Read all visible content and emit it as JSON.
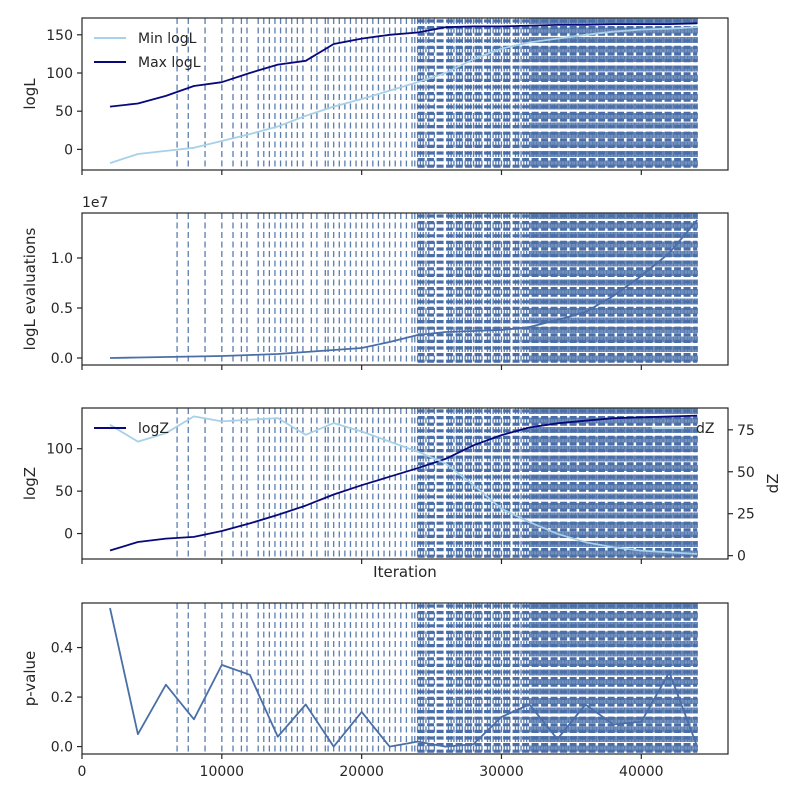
{
  "chart_data": [
    {
      "type": "line",
      "ylabel": "logL",
      "yticks": [
        0,
        50,
        100,
        150
      ],
      "ylim": [
        -27,
        172
      ],
      "xlim": [
        0,
        46200
      ],
      "x_tick_labels_visible": false,
      "legend_placement": "top-left",
      "series": [
        {
          "name": "Min logL",
          "color": "#a6d1e8",
          "x": [
            2000,
            4000,
            6000,
            8000,
            10000,
            12000,
            14000,
            16000,
            18000,
            20000,
            22000,
            24000,
            26000,
            28000,
            30000,
            32000,
            34000,
            36000,
            38000,
            40000,
            42000,
            44000
          ],
          "y": [
            -18,
            -6,
            -2,
            2,
            11,
            20,
            30,
            44,
            56,
            66,
            77,
            88,
            100,
            118,
            132,
            140,
            145,
            150,
            154,
            157,
            158,
            160
          ]
        },
        {
          "name": "Max logL",
          "color": "#08087a",
          "x": [
            2000,
            4000,
            6000,
            8000,
            10000,
            12000,
            14000,
            16000,
            18000,
            20000,
            22000,
            24000,
            26000,
            28000,
            30000,
            32000,
            34000,
            36000,
            38000,
            40000,
            42000,
            44000
          ],
          "y": [
            56,
            60,
            70,
            83,
            88,
            100,
            111,
            116,
            138,
            145,
            150,
            153,
            160,
            161,
            161,
            162,
            163,
            163,
            164,
            164,
            164,
            165
          ]
        }
      ]
    },
    {
      "type": "line",
      "ylabel": "logL evaluations",
      "offset_text": "1e7",
      "yticks": [
        0.0,
        0.5,
        1.0
      ],
      "ylim": [
        -0.07,
        1.45
      ],
      "xlim": [
        0,
        46200
      ],
      "x_tick_labels_visible": false,
      "series": [
        {
          "color": "#4a6fa8",
          "x": [
            2000,
            4000,
            6000,
            8000,
            10000,
            12000,
            14000,
            16000,
            18000,
            20000,
            22000,
            24000,
            26000,
            28000,
            30000,
            32000,
            34000,
            36000,
            38000,
            40000,
            42000,
            44000
          ],
          "y": [
            0.0,
            0.005,
            0.01,
            0.015,
            0.02,
            0.03,
            0.04,
            0.06,
            0.08,
            0.1,
            0.16,
            0.23,
            0.26,
            0.27,
            0.28,
            0.31,
            0.38,
            0.46,
            0.62,
            0.82,
            1.05,
            1.38
          ]
        }
      ]
    },
    {
      "type": "line",
      "ylabel": "logZ",
      "y2label": "dZ",
      "xlabel": "Iteration",
      "yticks": [
        0,
        50,
        100
      ],
      "ylim": [
        -30,
        148
      ],
      "y2ticks": [
        0,
        25,
        50,
        75
      ],
      "y2lim": [
        -2,
        88
      ],
      "xlim": [
        0,
        46200
      ],
      "x_tick_labels_visible": false,
      "series": [
        {
          "name": "logZ",
          "color": "#08087a",
          "axis": "left",
          "x": [
            2000,
            4000,
            6000,
            8000,
            10000,
            12000,
            14000,
            16000,
            18000,
            20000,
            22000,
            24000,
            26000,
            28000,
            30000,
            32000,
            34000,
            36000,
            38000,
            40000,
            42000,
            44000
          ],
          "y": [
            -20,
            -10,
            -6,
            -4,
            3,
            12,
            22,
            33,
            46,
            57,
            67,
            77,
            88,
            104,
            116,
            125,
            130,
            133,
            136,
            137,
            138,
            139
          ]
        },
        {
          "name": "dZ",
          "color": "#a6d1e8",
          "axis": "right",
          "x": [
            2000,
            4000,
            6000,
            8000,
            10000,
            12000,
            14000,
            16000,
            18000,
            20000,
            22000,
            24000,
            26000,
            28000,
            30000,
            32000,
            34000,
            36000,
            38000,
            40000,
            42000,
            44000
          ],
          "y": [
            78,
            68,
            73,
            83,
            80,
            81,
            82,
            72,
            79,
            74,
            68,
            62,
            55,
            42,
            28,
            20,
            13,
            8,
            5,
            3,
            2,
            1
          ]
        }
      ]
    },
    {
      "type": "line",
      "ylabel": "p-value",
      "yticks": [
        0.0,
        0.2,
        0.4
      ],
      "ylim": [
        -0.03,
        0.58
      ],
      "xlim": [
        0,
        46200
      ],
      "xticks": [
        0,
        10000,
        20000,
        30000,
        40000
      ],
      "x_tick_labels_visible": true,
      "series": [
        {
          "color": "#4a6fa8",
          "x": [
            2000,
            4000,
            6000,
            8000,
            10000,
            12000,
            14000,
            16000,
            18000,
            20000,
            22000,
            24000,
            26000,
            28000,
            30000,
            32000,
            34000,
            36000,
            38000,
            40000,
            42000,
            44000
          ],
          "y": [
            0.56,
            0.05,
            0.25,
            0.11,
            0.33,
            0.29,
            0.04,
            0.17,
            0.0,
            0.14,
            0.0,
            0.02,
            0.0,
            0.01,
            0.12,
            0.17,
            0.03,
            0.17,
            0.09,
            0.1,
            0.3,
            0.0
          ]
        }
      ]
    }
  ],
  "vlines": {
    "color": "#4a6fa8",
    "style": "dashed",
    "x": [
      6800,
      7600,
      8800,
      10000,
      10800,
      11400,
      11800,
      12600,
      13000,
      13400,
      13800,
      14200,
      14600,
      15000,
      15400,
      15800,
      16400,
      16800,
      17400,
      17600,
      18000,
      18400,
      18800,
      19200,
      19600,
      20000,
      20400,
      20800,
      21200,
      21600,
      22000,
      22400,
      22800,
      23200,
      23600,
      23800,
      24000,
      24200,
      24400,
      24600,
      24800,
      25200,
      26200,
      26400,
      26600,
      26800,
      27000,
      27200,
      27400,
      27600,
      27800,
      28000,
      28200,
      28400,
      28600,
      29000,
      29200,
      29400,
      29600,
      29800,
      30000,
      30200,
      30400,
      30600,
      31000,
      31200,
      31400,
      31600,
      31800,
      32000,
      32100,
      32200,
      32300,
      32400,
      32500,
      32600,
      32700,
      32800,
      32900,
      33000,
      33100,
      33200,
      33300,
      33400,
      33500,
      33600,
      33700,
      33800,
      33900,
      34000,
      34100,
      34200,
      34300,
      34400,
      34500,
      34600,
      34700,
      34800,
      34900,
      35000,
      35100,
      35200,
      35300,
      35400,
      35500,
      35600,
      35700,
      35800,
      35900,
      36000,
      36100,
      36200,
      36300,
      36400,
      36500,
      36600,
      36700,
      36800,
      36900,
      37000,
      37100,
      37200,
      37300,
      37400,
      37500,
      37600,
      37700,
      37800,
      37900,
      38000,
      38100,
      38200,
      38300,
      38400,
      38500,
      38600,
      38700,
      38800,
      38900,
      39000,
      39100,
      39200,
      39300,
      39400,
      39500,
      39600,
      39700,
      39800,
      39900,
      40000,
      40100,
      40200,
      40300,
      40400,
      40500,
      40600,
      40700,
      40800,
      40900,
      41000,
      41100,
      41200,
      41300,
      41400,
      41500,
      41600,
      41700,
      41800,
      41900,
      42000,
      42100,
      42200,
      42300,
      42400,
      42500,
      42600,
      42700,
      42800,
      42900,
      43000,
      43100,
      43200,
      43300,
      43400,
      43500,
      43600,
      43700,
      43800,
      43900,
      44000
    ],
    "dense_start": 24000,
    "dense_end": 44000
  }
}
